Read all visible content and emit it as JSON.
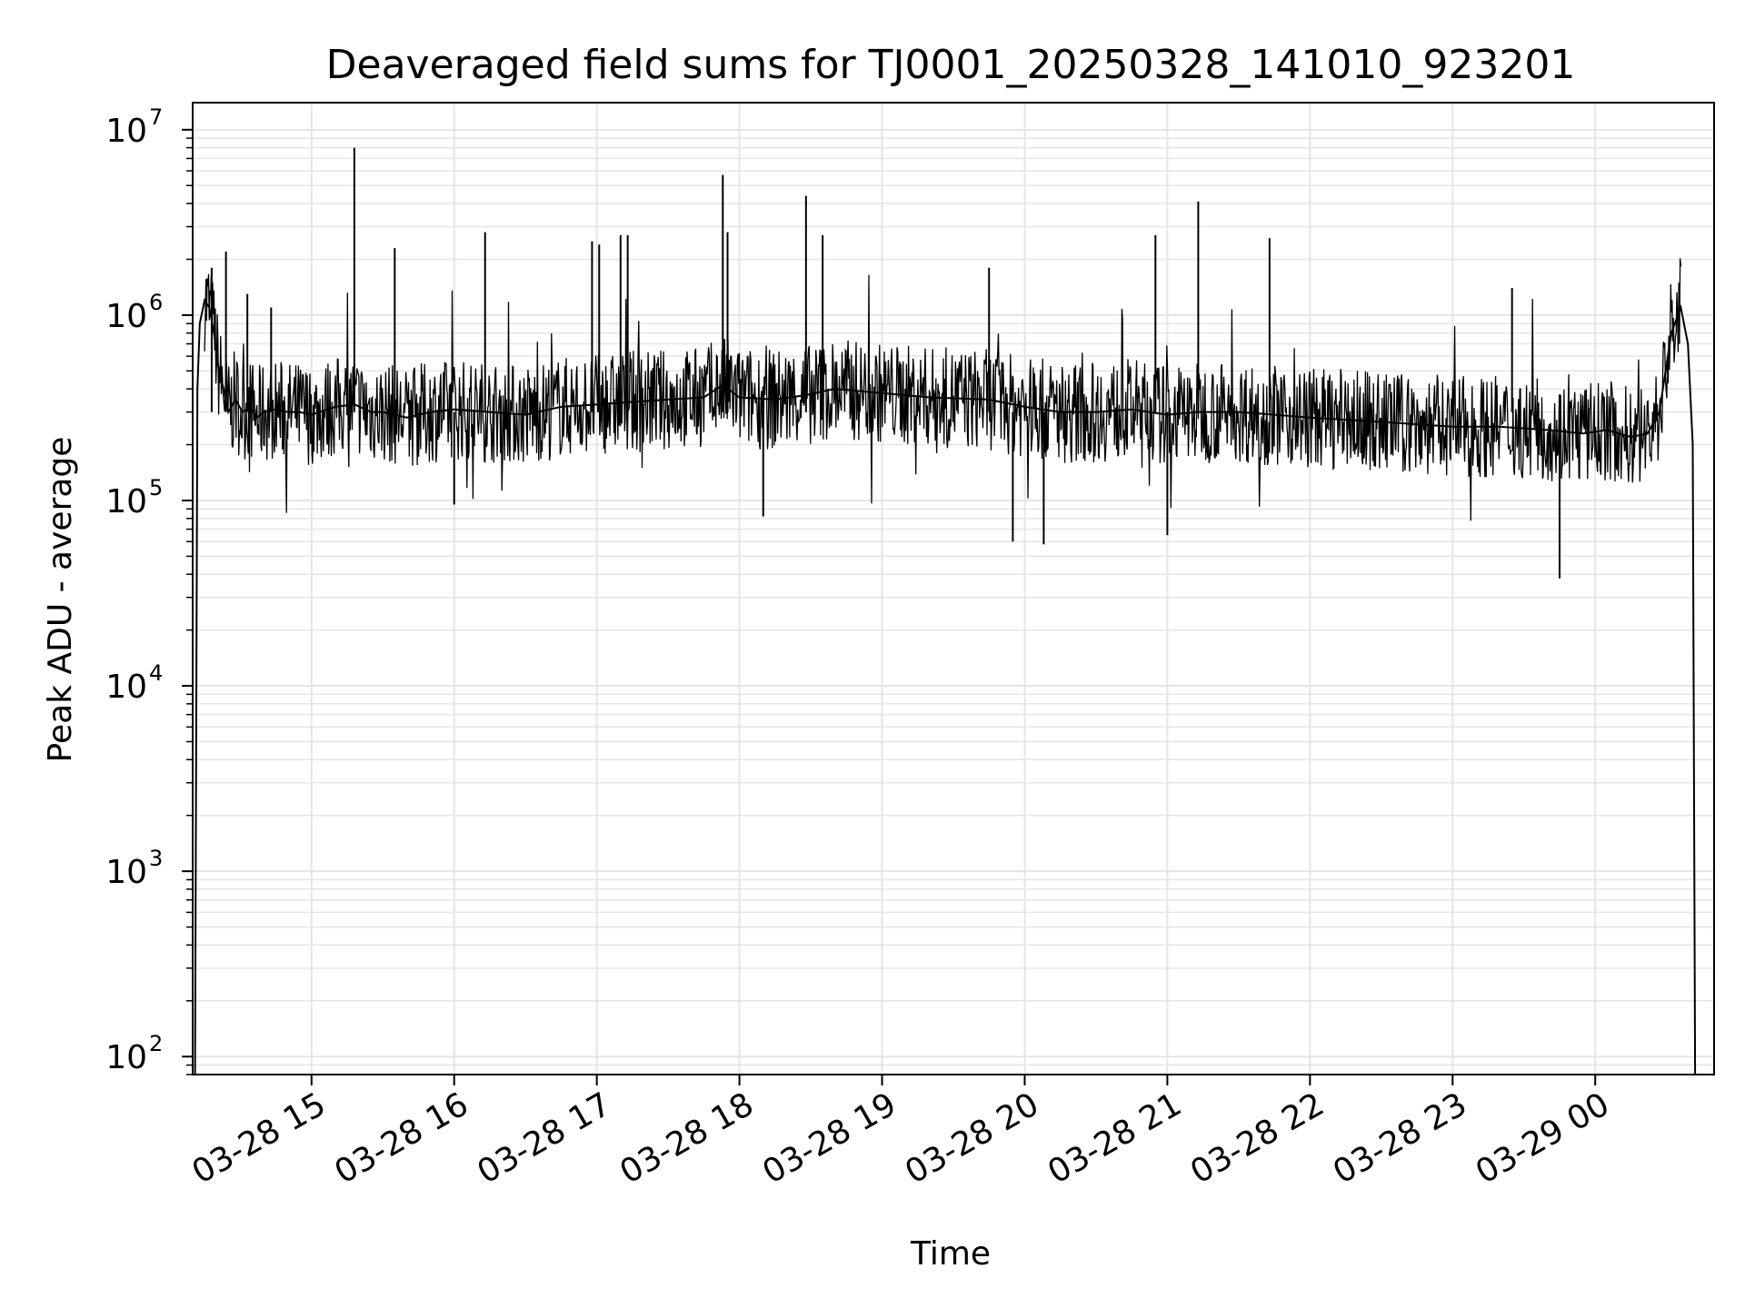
{
  "chart_data": {
    "type": "line",
    "title": "Deaveraged field sums for TJ0001_20250328_141010_923201",
    "xlabel": "Time",
    "ylabel": "Peak ADU - average",
    "yscale": "log",
    "ylim": [
      80,
      14000000
    ],
    "xlim": [
      "2025-03-28 14:10",
      "2025-03-29 00:50"
    ],
    "grid": true,
    "line_color": "#000000",
    "grid_color": "#e5e5e5",
    "x_ticks": [
      {
        "label": "03-28 15",
        "value": "2025-03-28 15:00"
      },
      {
        "label": "03-28 16",
        "value": "2025-03-28 16:00"
      },
      {
        "label": "03-28 17",
        "value": "2025-03-28 17:00"
      },
      {
        "label": "03-28 18",
        "value": "2025-03-28 18:00"
      },
      {
        "label": "03-28 19",
        "value": "2025-03-28 19:00"
      },
      {
        "label": "03-28 20",
        "value": "2025-03-28 20:00"
      },
      {
        "label": "03-28 21",
        "value": "2025-03-28 21:00"
      },
      {
        "label": "03-28 22",
        "value": "2025-03-28 22:00"
      },
      {
        "label": "03-28 23",
        "value": "2025-03-28 23:00"
      },
      {
        "label": "03-29 00",
        "value": "2025-03-29 00:00"
      }
    ],
    "y_ticks": [
      {
        "base": "10",
        "exp": "2",
        "value": 100
      },
      {
        "base": "10",
        "exp": "3",
        "value": 1000
      },
      {
        "base": "10",
        "exp": "4",
        "value": 10000
      },
      {
        "base": "10",
        "exp": "5",
        "value": 100000
      },
      {
        "base": "10",
        "exp": "6",
        "value": 1000000
      },
      {
        "base": "10",
        "exp": "7",
        "value": 10000000
      }
    ],
    "series": [
      {
        "x": [
          "2025-03-28 14:11",
          "2025-03-28 14:12",
          "2025-03-28 14:13",
          "2025-03-28 14:15",
          "2025-03-28 14:17",
          "2025-03-28 14:19",
          "2025-03-28 14:21",
          "2025-03-28 14:23",
          "2025-03-28 14:25",
          "2025-03-28 14:28",
          "2025-03-28 14:31",
          "2025-03-28 14:34",
          "2025-03-28 14:37",
          "2025-03-28 14:40",
          "2025-03-28 14:45",
          "2025-03-28 14:50",
          "2025-03-28 14:55",
          "2025-03-28 15:00",
          "2025-03-28 15:10",
          "2025-03-28 15:18",
          "2025-03-28 15:25",
          "2025-03-28 15:30",
          "2025-03-28 15:40",
          "2025-03-28 15:50",
          "2025-03-28 16:00",
          "2025-03-28 16:15",
          "2025-03-28 16:30",
          "2025-03-28 16:45",
          "2025-03-28 17:00",
          "2025-03-28 17:15",
          "2025-03-28 17:30",
          "2025-03-28 17:45",
          "2025-03-28 17:53",
          "2025-03-28 18:00",
          "2025-03-28 18:15",
          "2025-03-28 18:28",
          "2025-03-28 18:40",
          "2025-03-28 19:00",
          "2025-03-28 19:20",
          "2025-03-28 19:45",
          "2025-03-28 20:00",
          "2025-03-28 20:15",
          "2025-03-28 20:30",
          "2025-03-28 20:45",
          "2025-03-28 21:00",
          "2025-03-28 21:13",
          "2025-03-28 21:30",
          "2025-03-28 21:45",
          "2025-03-28 22:00",
          "2025-03-28 22:20",
          "2025-03-28 22:40",
          "2025-03-28 23:00",
          "2025-03-28 23:20",
          "2025-03-28 23:40",
          "2025-03-28 23:55",
          "2025-03-29 00:05",
          "2025-03-29 00:15",
          "2025-03-29 00:22",
          "2025-03-29 00:27",
          "2025-03-29 00:32",
          "2025-03-29 00:36",
          "2025-03-29 00:39",
          "2025-03-29 00:41",
          "2025-03-29 00:42"
        ],
        "y": [
          80,
          400000,
          900000,
          1200000,
          1100000,
          800000,
          500000,
          400000,
          300000,
          350000,
          300000,
          320000,
          280000,
          300000,
          310000,
          300000,
          300000,
          290000,
          320000,
          330000,
          300000,
          300000,
          280000,
          300000,
          310000,
          300000,
          290000,
          320000,
          330000,
          340000,
          350000,
          360000,
          420000,
          360000,
          350000,
          370000,
          400000,
          380000,
          360000,
          350000,
          320000,
          300000,
          300000,
          310000,
          290000,
          300000,
          300000,
          290000,
          280000,
          270000,
          260000,
          250000,
          250000,
          240000,
          230000,
          240000,
          220000,
          230000,
          300000,
          800000,
          1100000,
          700000,
          200000,
          80
        ]
      },
      {
        "name": "",
        "type": "spikes",
        "x": [
          "2025-03-28 14:18",
          "2025-03-28 14:24",
          "2025-03-28 14:33",
          "2025-03-28 14:43",
          "2025-03-28 15:18",
          "2025-03-28 15:35",
          "2025-03-28 16:13",
          "2025-03-28 16:58",
          "2025-03-28 17:01",
          "2025-03-28 17:10",
          "2025-03-28 17:13",
          "2025-03-28 17:53",
          "2025-03-28 17:55",
          "2025-03-28 18:28",
          "2025-03-28 18:35",
          "2025-03-28 19:45",
          "2025-03-28 20:55",
          "2025-03-28 21:13",
          "2025-03-28 21:43",
          "2025-03-28 23:25",
          "2025-03-28 19:55",
          "2025-03-28 20:08",
          "2025-03-28 21:00",
          "2025-03-28 23:45",
          "2025-03-28 16:00",
          "2025-03-28 18:10"
        ],
        "y": [
          1800000,
          2200000,
          1300000,
          1100000,
          8000000,
          2300000,
          2800000,
          2500000,
          2400000,
          2700000,
          2700000,
          5700000,
          2800000,
          4400000,
          2700000,
          1800000,
          2700000,
          4100000,
          2600000,
          1400000,
          60000,
          58000,
          65000,
          38000,
          95000,
          82000
        ]
      }
    ]
  }
}
